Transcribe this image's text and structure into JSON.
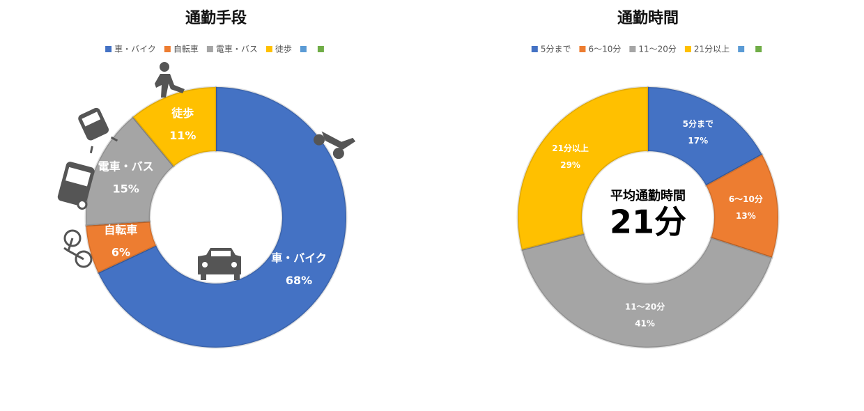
{
  "chart_data": [
    {
      "type": "donut",
      "title": "通勤手段",
      "categories": [
        "車・バイク",
        "自転車",
        "電車・バス",
        "徒歩",
        null,
        null
      ],
      "values": [
        68,
        6,
        15,
        11,
        0,
        0
      ],
      "value_labels": [
        "68%",
        "6%",
        "15%",
        "11%",
        null,
        null
      ],
      "colors": [
        "#4472c4",
        "#ed7d31",
        "#a5a5a5",
        "#ffc000",
        "#5b9bd5",
        "#70ad47"
      ],
      "legend": "top"
    },
    {
      "type": "donut",
      "title": "通勤時間",
      "categories": [
        "5分まで",
        "6〜10分",
        "11〜20分",
        "21分以上",
        null,
        null
      ],
      "values": [
        17,
        13,
        41,
        29,
        0,
        0
      ],
      "value_labels": [
        "17%",
        "13%",
        "41%",
        "29%",
        null,
        null
      ],
      "colors": [
        "#4472c4",
        "#ed7d31",
        "#a5a5a5",
        "#ffc000",
        "#5b9bd5",
        "#70ad47"
      ],
      "legend": "top",
      "annotations": [
        "平均通勤時間",
        "21分"
      ]
    }
  ]
}
